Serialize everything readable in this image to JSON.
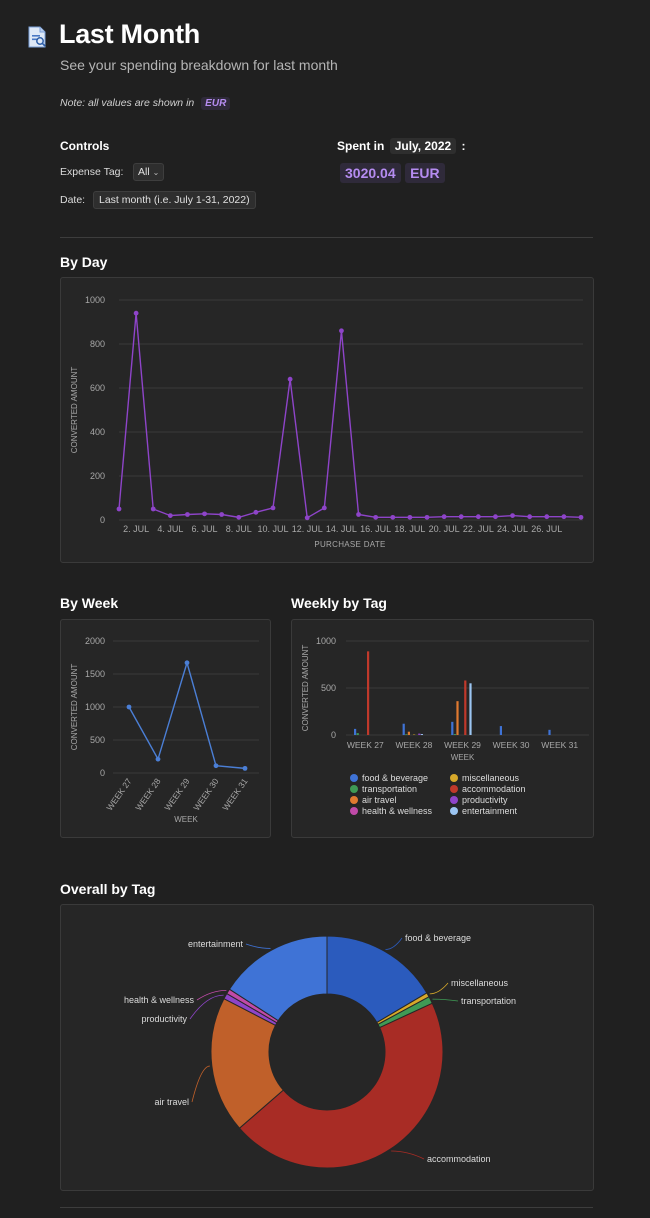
{
  "header": {
    "title": "Last Month",
    "subtitle": "See your spending breakdown for last month",
    "note_text": "Note: all values are shown in",
    "note_currency": "EUR"
  },
  "controls": {
    "heading": "Controls",
    "expense_tag_label": "Expense Tag:",
    "expense_tag_value": "All",
    "date_label": "Date:",
    "date_value": "Last month (i.e. July 1-31, 2022)"
  },
  "spent": {
    "label": "Spent in",
    "period": "July, 2022",
    "colon": ":",
    "amount": "3020.04",
    "currency": "EUR"
  },
  "sections": {
    "by_day": "By Day",
    "by_week": "By Week",
    "weekly_by_tag": "Weekly by Tag",
    "overall_by_tag": "Overall by Tag"
  },
  "colors": {
    "accent": "#b58cf0",
    "line_day": "#8e44c9",
    "line_week": "#4b7fd6"
  },
  "chart_data": [
    {
      "id": "by_day",
      "type": "line",
      "xlabel": "PURCHASE DATE",
      "ylabel": "CONVERTED AMOUNT",
      "ylim": [
        0,
        1000
      ],
      "yticks": [
        "0",
        "200",
        "400",
        "600",
        "800",
        "1000"
      ],
      "x_tick_labels": [
        "2. JUL",
        "4. JUL",
        "6. JUL",
        "8. JUL",
        "10. JUL",
        "12. JUL",
        "14. JUL",
        "16. JUL",
        "18. JUL",
        "20. JUL",
        "22. JUL",
        "24. JUL",
        "26. JUL"
      ],
      "x": [
        1,
        2,
        3,
        4,
        5,
        6,
        7,
        8,
        9,
        10,
        11,
        12,
        13,
        14,
        15,
        16,
        17,
        18,
        19,
        20,
        21,
        22,
        23,
        24,
        25,
        26,
        27,
        28
      ],
      "values": [
        50,
        940,
        50,
        20,
        25,
        28,
        25,
        12,
        35,
        55,
        640,
        10,
        55,
        860,
        25,
        12,
        12,
        12,
        12,
        15,
        15,
        15,
        15,
        20,
        15,
        15,
        15,
        12
      ]
    },
    {
      "id": "by_week",
      "type": "line",
      "xlabel": "WEEK",
      "ylabel": "CONVERTED AMOUNT",
      "ylim": [
        0,
        2000
      ],
      "yticks": [
        "0",
        "500",
        "1000",
        "1500",
        "2000"
      ],
      "categories": [
        "WEEK 27",
        "WEEK 28",
        "WEEK 29",
        "WEEK 30",
        "WEEK 31"
      ],
      "values": [
        1000,
        210,
        1670,
        110,
        70
      ]
    },
    {
      "id": "weekly_by_tag",
      "type": "bar",
      "xlabel": "WEEK",
      "ylabel": "CONVERTED AMOUNT",
      "ylim": [
        0,
        1000
      ],
      "yticks": [
        "0",
        "500",
        "1000"
      ],
      "categories": [
        "WEEK 27",
        "WEEK 28",
        "WEEK 29",
        "WEEK 30",
        "WEEK 31"
      ],
      "series": [
        {
          "name": "food & beverage",
          "color": "#3f73d6",
          "values": [
            65,
            120,
            140,
            95,
            55
          ]
        },
        {
          "name": "transportation",
          "color": "#3f9a55",
          "values": [
            20,
            8,
            10,
            0,
            0
          ]
        },
        {
          "name": "air travel",
          "color": "#e07a30",
          "values": [
            0,
            35,
            360,
            0,
            0
          ]
        },
        {
          "name": "health & wellness",
          "color": "#c04aa8",
          "values": [
            0,
            0,
            0,
            0,
            0
          ]
        },
        {
          "name": "miscellaneous",
          "color": "#d6a82a",
          "values": [
            0,
            5,
            0,
            0,
            0
          ]
        },
        {
          "name": "accommodation",
          "color": "#c0392b",
          "values": [
            890,
            0,
            580,
            0,
            0
          ]
        },
        {
          "name": "productivity",
          "color": "#8e44c9",
          "values": [
            0,
            15,
            0,
            0,
            0
          ]
        },
        {
          "name": "entertainment",
          "color": "#9cc5f2",
          "values": [
            0,
            10,
            550,
            0,
            0
          ]
        }
      ]
    },
    {
      "id": "overall_by_tag",
      "type": "pie",
      "slices": [
        {
          "name": "food & beverage",
          "value": 16.5,
          "color": "#2b5bbd"
        },
        {
          "name": "miscellaneous",
          "value": 0.6,
          "color": "#d6a82a"
        },
        {
          "name": "transportation",
          "value": 1.0,
          "color": "#3f9a55"
        },
        {
          "name": "accommodation",
          "value": 45.5,
          "color": "#a82c25"
        },
        {
          "name": "air travel",
          "value": 19.0,
          "color": "#c0602a"
        },
        {
          "name": "productivity",
          "value": 0.8,
          "color": "#8e44c9"
        },
        {
          "name": "health & wellness",
          "value": 0.7,
          "color": "#c04aa8"
        },
        {
          "name": "entertainment",
          "value": 15.9,
          "color": "#3f73d6"
        }
      ]
    }
  ]
}
